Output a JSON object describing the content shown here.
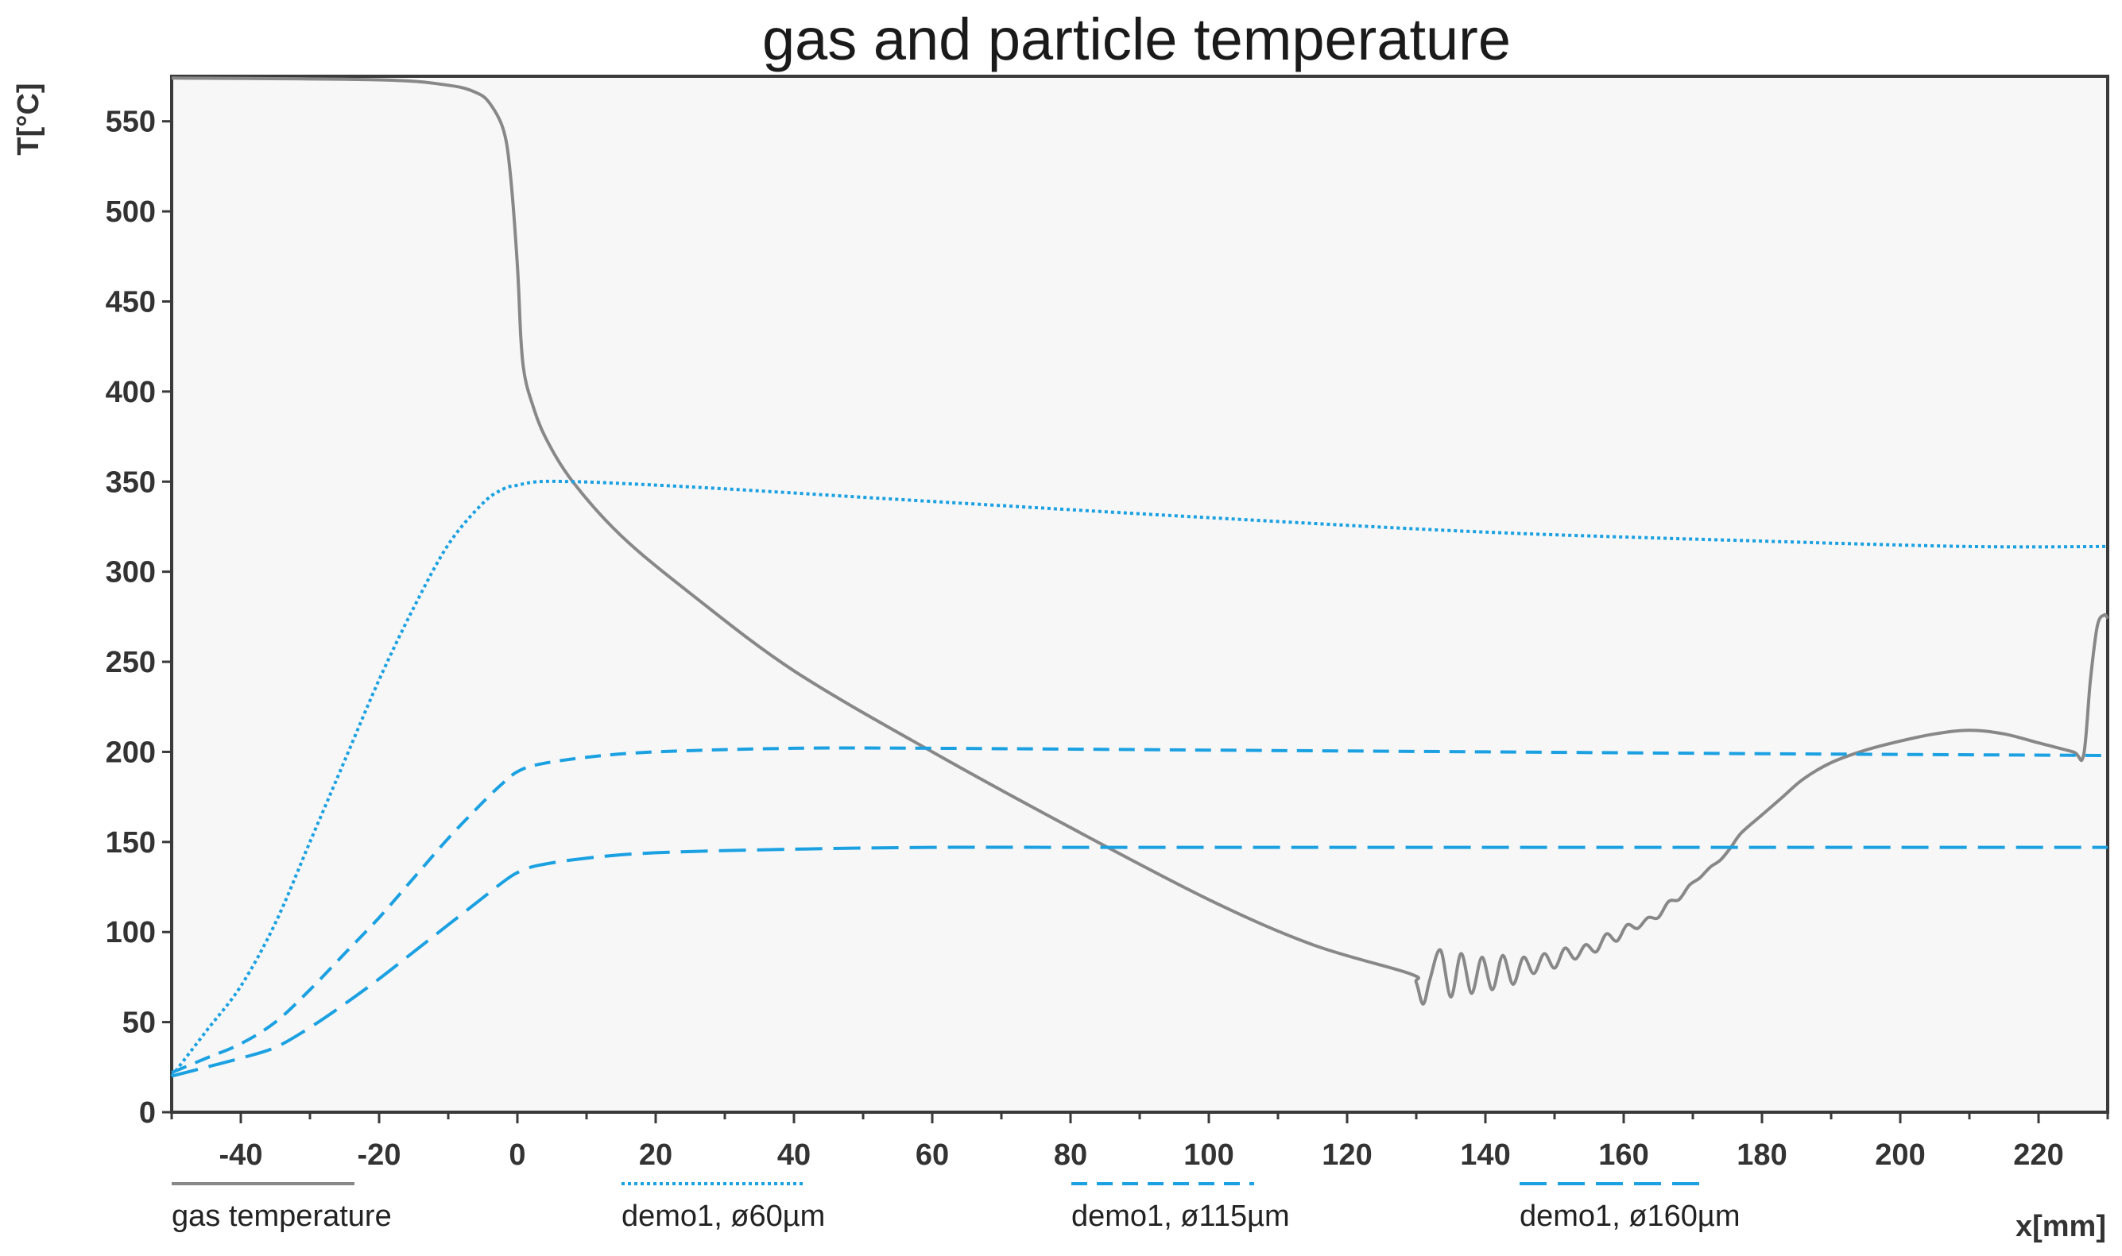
{
  "chart_data": {
    "type": "line",
    "title": "gas and particle temperature",
    "xlabel": "x[mm]",
    "ylabel": "T[°C]",
    "xlim": [
      -50,
      230
    ],
    "ylim": [
      0,
      575
    ],
    "x_ticks": [
      -40,
      -20,
      0,
      20,
      40,
      60,
      80,
      100,
      120,
      140,
      160,
      180,
      200,
      220
    ],
    "y_ticks": [
      0,
      50,
      100,
      150,
      200,
      250,
      300,
      350,
      400,
      450,
      500,
      550
    ],
    "grid": false,
    "legend_position": "bottom",
    "colors": {
      "plot_background": "#f7f7f7",
      "gas": "#888888",
      "particles": "#1ba1e2"
    },
    "series": [
      {
        "name": "gas temperature",
        "style": "solid",
        "x": [
          -50,
          -20,
          -10,
          -6,
          -4,
          -2,
          -1,
          0,
          0.5,
          1,
          2,
          4,
          8,
          15,
          25,
          40,
          60,
          80,
          100,
          115,
          129,
          130,
          131,
          132,
          133.5,
          135,
          136.5,
          138,
          139.5,
          141,
          142.5,
          144,
          145.5,
          147,
          148.5,
          150,
          151.5,
          153,
          154.5,
          156,
          157.5,
          159,
          160.5,
          162,
          163.5,
          165,
          166.5,
          168,
          169.5,
          171,
          172.5,
          174,
          175.5,
          177,
          180,
          183,
          186,
          190,
          195,
          200,
          205,
          210,
          215,
          220,
          225,
          226.5,
          227.5,
          228.5,
          229.5,
          230
        ],
        "y": [
          574,
          573,
          570,
          566,
          560,
          545,
          520,
          470,
          430,
          410,
          395,
          375,
          350,
          320,
          288,
          245,
          200,
          158,
          118,
          93,
          77,
          72,
          60,
          74,
          90,
          64,
          88,
          66,
          86,
          68,
          87,
          71,
          86,
          77,
          88,
          80,
          91,
          85,
          93,
          89,
          99,
          95,
          104,
          102,
          108,
          108,
          117,
          118,
          126,
          130,
          136,
          140,
          147,
          155,
          165,
          175,
          185,
          194,
          201,
          206,
          210,
          212,
          210,
          205,
          200,
          198,
          240,
          270,
          276,
          274
        ]
      },
      {
        "name": "demo1, ø60µm",
        "style": "dotted",
        "x": [
          -50,
          -45,
          -40,
          -35,
          -30,
          -25,
          -20,
          -15,
          -10,
          -5,
          -2,
          0,
          3,
          8,
          15,
          30,
          60,
          100,
          140,
          180,
          210,
          230
        ],
        "y": [
          20,
          45,
          70,
          105,
          150,
          195,
          240,
          280,
          315,
          338,
          346,
          348,
          350,
          350,
          349,
          346,
          339,
          330,
          322,
          317,
          314,
          314
        ]
      },
      {
        "name": "demo1, ø115µm",
        "style": "dashed",
        "x": [
          -50,
          -45,
          -40,
          -35,
          -30,
          -25,
          -20,
          -15,
          -10,
          -5,
          -2,
          0,
          3,
          10,
          20,
          40,
          60,
          100,
          140,
          180,
          230
        ],
        "y": [
          22,
          30,
          38,
          50,
          68,
          88,
          108,
          130,
          152,
          172,
          183,
          189,
          193,
          197,
          200,
          202,
          202,
          201,
          200,
          199,
          198
        ]
      },
      {
        "name": "demo1, ø160µm",
        "style": "dashed-long",
        "x": [
          -50,
          -45,
          -40,
          -35,
          -30,
          -25,
          -20,
          -15,
          -10,
          -5,
          -2,
          0,
          3,
          10,
          20,
          40,
          60,
          80,
          120,
          160,
          200,
          230
        ],
        "y": [
          20,
          25,
          30,
          36,
          47,
          60,
          74,
          89,
          104,
          119,
          128,
          133,
          137,
          141,
          144,
          146,
          147,
          147,
          147,
          147,
          147,
          147
        ]
      }
    ]
  }
}
